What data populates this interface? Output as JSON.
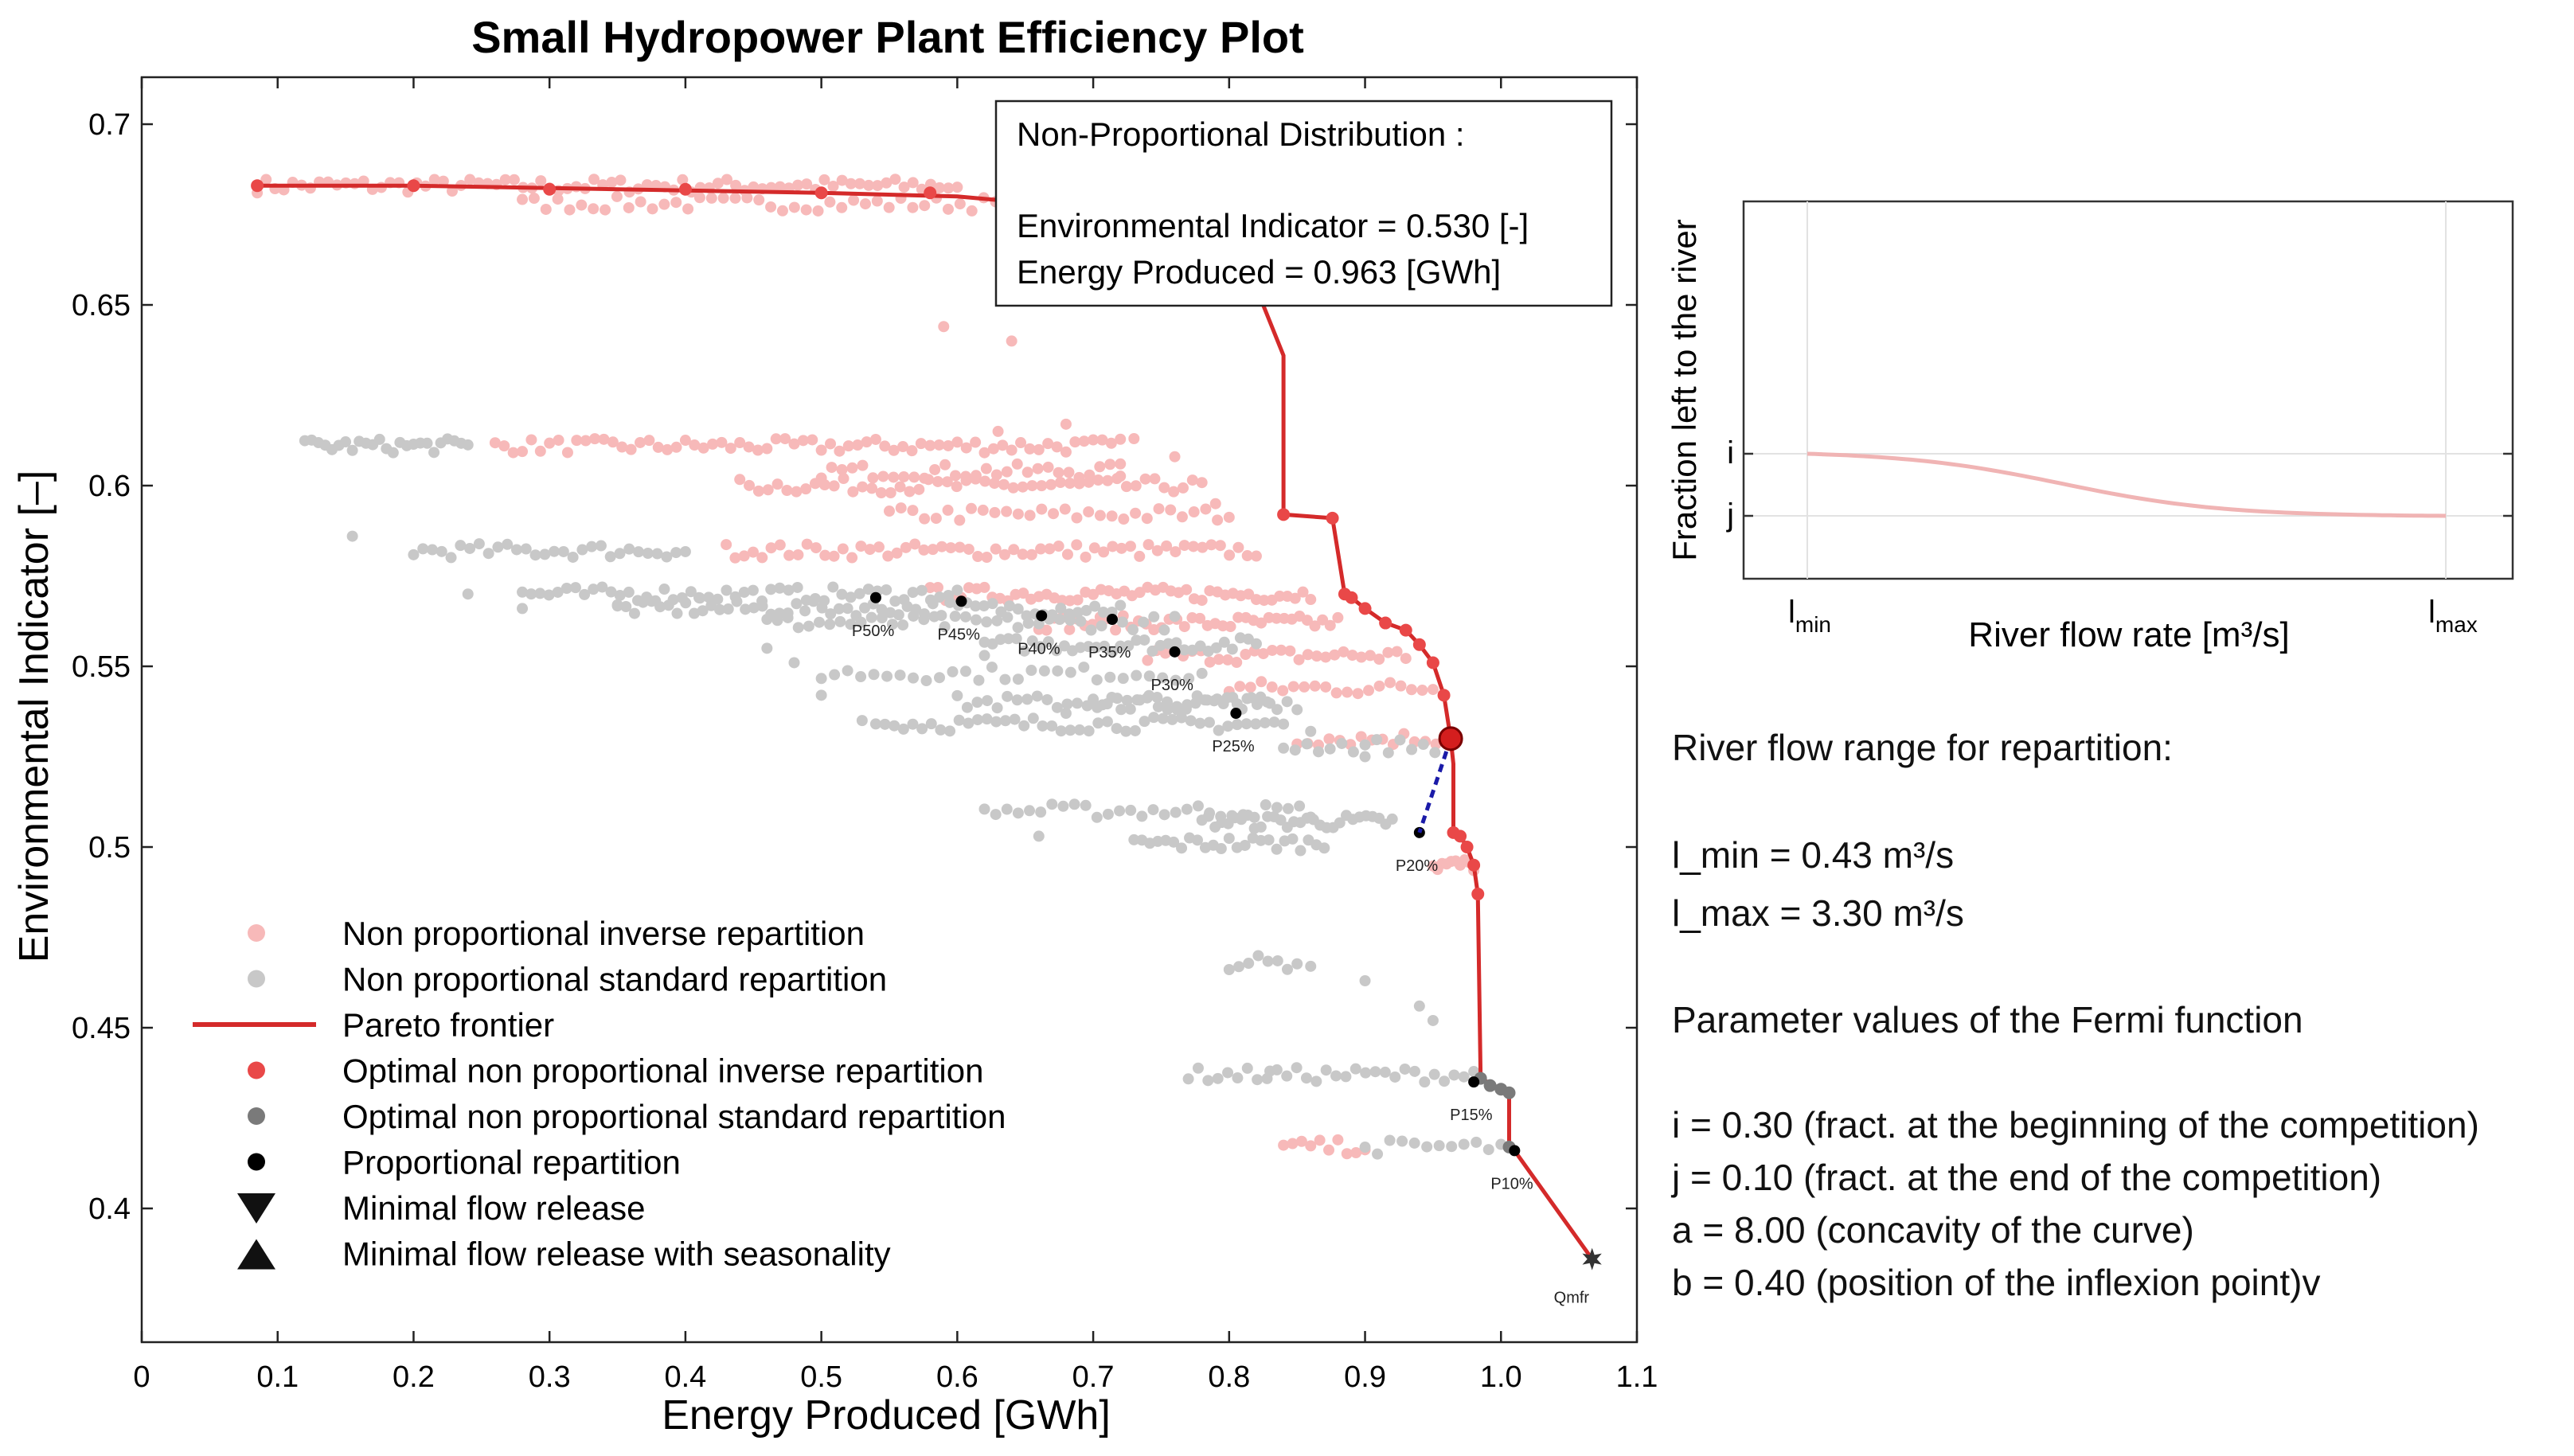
{
  "chart_data": {
    "type": "scatter",
    "title": "Small Hydropower Plant Efficiency Plot",
    "xlabel": "Energy Produced [GWh]",
    "ylabel": "Environmental Indicator [–]",
    "xlim": [
      0,
      1.1
    ],
    "ylim": [
      0.363,
      0.713
    ],
    "xticks": [
      0,
      0.1,
      0.2,
      0.3,
      0.4,
      0.5,
      0.6,
      0.7,
      0.8,
      0.9,
      1.0,
      1.1
    ],
    "xtick_labels": [
      "0",
      "0.1",
      "0.2",
      "0.3",
      "0.4",
      "0.5",
      "0.6",
      "0.7",
      "0.8",
      "0.9",
      "1.0",
      "1.1"
    ],
    "yticks": [
      0.4,
      0.45,
      0.5,
      0.55,
      0.6,
      0.65,
      0.7
    ],
    "ytick_labels": [
      "0.4",
      "0.45",
      "0.5",
      "0.55",
      "0.6",
      "0.65",
      "0.7"
    ],
    "grid": false,
    "legend_position": "bottom-left",
    "colors": {
      "inverse": "#f7b9b9",
      "standard": "#c8c8c8",
      "pareto": "#d42a2a",
      "optimal_inverse": "#e94848",
      "optimal_standard": "#7a7a7a",
      "proportional": "#000000",
      "selected": "#d41e1e",
      "link": "#1a1aa8"
    },
    "legend": [
      {
        "label": "Non proportional inverse repartition",
        "marker": "dot",
        "color": "#f7b9b9"
      },
      {
        "label": "Non proportional standard repartition",
        "marker": "dot",
        "color": "#c8c8c8"
      },
      {
        "label": "Pareto frontier",
        "marker": "line",
        "color": "#d42a2a"
      },
      {
        "label": "Optimal non proportional inverse repartition",
        "marker": "dot",
        "color": "#e94848"
      },
      {
        "label": "Optimal non proportional standard repartition",
        "marker": "dot",
        "color": "#7a7a7a"
      },
      {
        "label": "Proportional repartition",
        "marker": "dot",
        "color": "#000000"
      },
      {
        "label": "Minimal flow release",
        "marker": "triangle-down",
        "color": "#111111"
      },
      {
        "label": "Minimal flow release with seasonality",
        "marker": "triangle-up",
        "color": "#111111"
      }
    ],
    "pareto_frontier": [
      {
        "x": 0.085,
        "y": 0.683
      },
      {
        "x": 0.2,
        "y": 0.683
      },
      {
        "x": 0.35,
        "y": 0.682
      },
      {
        "x": 0.5,
        "y": 0.681
      },
      {
        "x": 0.6,
        "y": 0.68
      },
      {
        "x": 0.66,
        "y": 0.678
      },
      {
        "x": 0.74,
        "y": 0.671
      },
      {
        "x": 0.75,
        "y": 0.664
      },
      {
        "x": 0.8,
        "y": 0.665
      },
      {
        "x": 0.825,
        "y": 0.65
      },
      {
        "x": 0.84,
        "y": 0.636
      },
      {
        "x": 0.84,
        "y": 0.592
      },
      {
        "x": 0.876,
        "y": 0.591
      },
      {
        "x": 0.885,
        "y": 0.57
      },
      {
        "x": 0.89,
        "y": 0.569
      },
      {
        "x": 0.9,
        "y": 0.566
      },
      {
        "x": 0.915,
        "y": 0.562
      },
      {
        "x": 0.93,
        "y": 0.56
      },
      {
        "x": 0.94,
        "y": 0.556
      },
      {
        "x": 0.95,
        "y": 0.551
      },
      {
        "x": 0.958,
        "y": 0.542
      },
      {
        "x": 0.963,
        "y": 0.53
      },
      {
        "x": 0.965,
        "y": 0.523
      },
      {
        "x": 0.965,
        "y": 0.504
      },
      {
        "x": 0.97,
        "y": 0.503
      },
      {
        "x": 0.975,
        "y": 0.5
      },
      {
        "x": 0.98,
        "y": 0.495
      },
      {
        "x": 0.983,
        "y": 0.487
      },
      {
        "x": 0.985,
        "y": 0.436
      },
      {
        "x": 1.0,
        "y": 0.433
      },
      {
        "x": 1.006,
        "y": 0.432
      },
      {
        "x": 1.006,
        "y": 0.417
      },
      {
        "x": 1.01,
        "y": 0.416
      },
      {
        "x": 1.067,
        "y": 0.386
      }
    ],
    "optimal_inverse": [
      {
        "x": 0.085,
        "y": 0.683
      },
      {
        "x": 0.2,
        "y": 0.683
      },
      {
        "x": 0.3,
        "y": 0.682
      },
      {
        "x": 0.4,
        "y": 0.682
      },
      {
        "x": 0.5,
        "y": 0.681
      },
      {
        "x": 0.58,
        "y": 0.681
      },
      {
        "x": 0.84,
        "y": 0.592
      },
      {
        "x": 0.876,
        "y": 0.591
      },
      {
        "x": 0.885,
        "y": 0.57
      },
      {
        "x": 0.89,
        "y": 0.569
      },
      {
        "x": 0.9,
        "y": 0.566
      },
      {
        "x": 0.915,
        "y": 0.562
      },
      {
        "x": 0.93,
        "y": 0.56
      },
      {
        "x": 0.94,
        "y": 0.556
      },
      {
        "x": 0.95,
        "y": 0.551
      },
      {
        "x": 0.958,
        "y": 0.542
      },
      {
        "x": 0.965,
        "y": 0.504
      },
      {
        "x": 0.97,
        "y": 0.503
      },
      {
        "x": 0.975,
        "y": 0.5
      },
      {
        "x": 0.98,
        "y": 0.495
      },
      {
        "x": 0.983,
        "y": 0.487
      }
    ],
    "optimal_standard": [
      {
        "x": 0.985,
        "y": 0.436
      },
      {
        "x": 0.992,
        "y": 0.434
      },
      {
        "x": 1.0,
        "y": 0.433
      },
      {
        "x": 1.006,
        "y": 0.432
      },
      {
        "x": 1.006,
        "y": 0.417
      }
    ],
    "proportional": [
      {
        "label": "P50%",
        "x": 0.54,
        "y": 0.569
      },
      {
        "label": "P45%",
        "x": 0.603,
        "y": 0.568
      },
      {
        "label": "P40%",
        "x": 0.662,
        "y": 0.564
      },
      {
        "label": "P35%",
        "x": 0.714,
        "y": 0.563
      },
      {
        "label": "P30%",
        "x": 0.76,
        "y": 0.554
      },
      {
        "label": "P25%",
        "x": 0.805,
        "y": 0.537
      },
      {
        "label": "P20%",
        "x": 0.94,
        "y": 0.504
      },
      {
        "label": "P15%",
        "x": 0.98,
        "y": 0.435
      },
      {
        "label": "P10%",
        "x": 1.01,
        "y": 0.416
      }
    ],
    "qmfr": {
      "label": "Qmfr",
      "x": 1.067,
      "y": 0.386
    },
    "selected_point": {
      "x": 0.963,
      "y": 0.53
    },
    "inverse_bands": [
      {
        "x": [
          0.085,
          0.6
        ],
        "y": 0.683,
        "n": 80
      },
      {
        "x": [
          0.28,
          0.75
        ],
        "y": 0.678,
        "n": 55
      },
      {
        "x": [
          0.26,
          0.72
        ],
        "y": 0.611,
        "n": 70
      },
      {
        "x": [
          0.5,
          0.72
        ],
        "y": 0.604,
        "n": 30
      },
      {
        "x": [
          0.44,
          0.78
        ],
        "y": 0.6,
        "n": 50
      },
      {
        "x": [
          0.55,
          0.8
        ],
        "y": 0.592,
        "n": 30
      },
      {
        "x": [
          0.43,
          0.82
        ],
        "y": 0.582,
        "n": 60
      },
      {
        "x": [
          0.58,
          0.86
        ],
        "y": 0.57,
        "n": 50
      },
      {
        "x": [
          0.66,
          0.88
        ],
        "y": 0.562,
        "n": 40
      },
      {
        "x": [
          0.74,
          0.93
        ],
        "y": 0.553,
        "n": 30
      },
      {
        "x": [
          0.8,
          0.95
        ],
        "y": 0.544,
        "n": 20
      },
      {
        "x": [
          0.85,
          0.96
        ],
        "y": 0.53,
        "n": 15
      },
      {
        "x": [
          0.95,
          0.98
        ],
        "y": 0.495,
        "n": 10
      },
      {
        "x": [
          0.84,
          0.9
        ],
        "y": 0.417,
        "n": 10
      }
    ],
    "inverse_scatter": [
      {
        "x": 0.59,
        "y": 0.644
      },
      {
        "x": 0.64,
        "y": 0.64
      },
      {
        "x": 0.68,
        "y": 0.617
      },
      {
        "x": 0.73,
        "y": 0.613
      },
      {
        "x": 0.76,
        "y": 0.608
      },
      {
        "x": 0.79,
        "y": 0.595
      },
      {
        "x": 0.72,
        "y": 0.606
      },
      {
        "x": 0.63,
        "y": 0.615
      }
    ],
    "standard_bands": [
      {
        "x": [
          0.12,
          0.24
        ],
        "y": 0.611,
        "n": 25
      },
      {
        "x": [
          0.2,
          0.4
        ],
        "y": 0.582,
        "n": 30
      },
      {
        "x": [
          0.28,
          0.6
        ],
        "y": 0.57,
        "n": 50
      },
      {
        "x": [
          0.35,
          0.72
        ],
        "y": 0.566,
        "n": 60
      },
      {
        "x": [
          0.46,
          0.76
        ],
        "y": 0.562,
        "n": 40
      },
      {
        "x": [
          0.62,
          0.82
        ],
        "y": 0.556,
        "n": 35
      },
      {
        "x": [
          0.5,
          0.78
        ],
        "y": 0.548,
        "n": 30
      },
      {
        "x": [
          0.6,
          0.85
        ],
        "y": 0.54,
        "n": 35
      },
      {
        "x": [
          0.54,
          0.84
        ],
        "y": 0.534,
        "n": 45
      },
      {
        "x": [
          0.7,
          0.83
        ],
        "y": 0.54,
        "n": 20
      },
      {
        "x": [
          0.84,
          0.96
        ],
        "y": 0.528,
        "n": 15
      },
      {
        "x": [
          0.62,
          0.86
        ],
        "y": 0.51,
        "n": 30
      },
      {
        "x": [
          0.78,
          0.92
        ],
        "y": 0.507,
        "n": 30
      },
      {
        "x": [
          0.73,
          0.87
        ],
        "y": 0.501,
        "n": 25
      },
      {
        "x": [
          0.8,
          0.85
        ],
        "y": 0.468,
        "n": 8
      },
      {
        "x": [
          0.77,
          0.98
        ],
        "y": 0.437,
        "n": 30
      },
      {
        "x": [
          0.9,
          1.0
        ],
        "y": 0.417,
        "n": 12
      }
    ],
    "standard_scatter": [
      {
        "x": 0.155,
        "y": 0.586
      },
      {
        "x": 0.24,
        "y": 0.57
      },
      {
        "x": 0.28,
        "y": 0.566
      },
      {
        "x": 0.35,
        "y": 0.567
      },
      {
        "x": 0.41,
        "y": 0.569
      },
      {
        "x": 0.46,
        "y": 0.555
      },
      {
        "x": 0.48,
        "y": 0.551
      },
      {
        "x": 0.5,
        "y": 0.542
      },
      {
        "x": 0.53,
        "y": 0.535
      },
      {
        "x": 0.62,
        "y": 0.553
      },
      {
        "x": 0.68,
        "y": 0.537
      },
      {
        "x": 0.86,
        "y": 0.532
      },
      {
        "x": 0.9,
        "y": 0.525
      },
      {
        "x": 0.66,
        "y": 0.503
      },
      {
        "x": 0.86,
        "y": 0.467
      },
      {
        "x": 0.9,
        "y": 0.463
      },
      {
        "x": 0.83,
        "y": 0.438
      },
      {
        "x": 0.94,
        "y": 0.456
      },
      {
        "x": 0.95,
        "y": 0.452
      }
    ]
  },
  "info_box": {
    "title": "Non-Proportional Distribution :",
    "env_indicator": "Environmental Indicator = 0.530 [-]",
    "energy": "Energy Produced = 0.963 [GWh]"
  },
  "inset": {
    "xlabel": "River flow rate [m³/s]",
    "ylabel": "Fraction left to the river",
    "x_tick_min": "l",
    "x_tick_min_sub": "min",
    "x_tick_max": "l",
    "x_tick_max_sub": "max",
    "y_tick_i": "i",
    "y_tick_j": "j",
    "fermi": {
      "i": 0.3,
      "j": 0.1,
      "a": 8.0,
      "b": 0.4
    },
    "curve_color": "#f0b4b4"
  },
  "right_text": {
    "range_title": "River flow range for repartition:",
    "l_min": "l_min = 0.43 m³/s",
    "l_max": "l_max = 3.30 m³/s",
    "param_title": "Parameter values of the Fermi function",
    "param_i": "i = 0.30 (fract. at the beginning of the competition)",
    "param_j": "j = 0.10 (fract. at the end of the competition)",
    "param_a": "a = 8.00 (concavity of the curve)",
    "param_b": "b = 0.40 (position of the inflexion point)v"
  }
}
